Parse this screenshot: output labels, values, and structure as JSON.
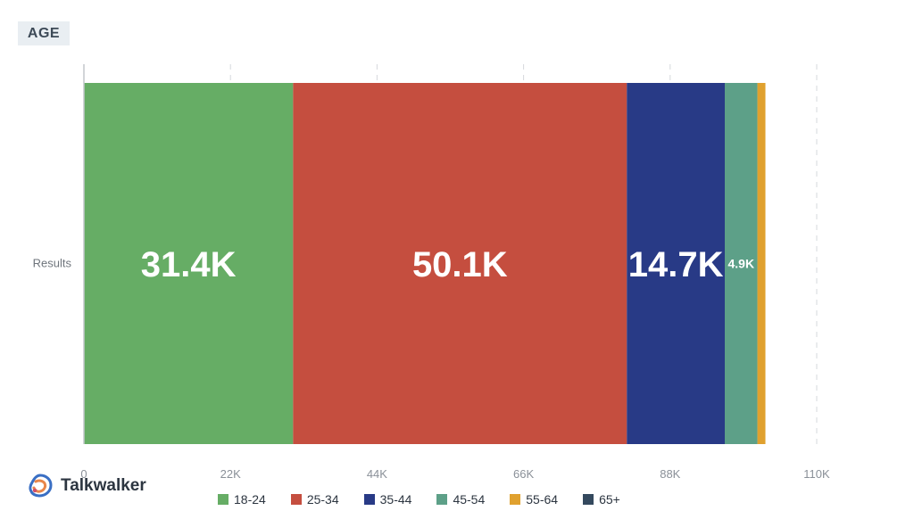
{
  "header": {
    "title": "AGE"
  },
  "brand": {
    "name": "Talkwalker",
    "logo_icon": "talkwalker-logo-icon"
  },
  "chart_data": {
    "type": "bar",
    "orientation": "horizontal",
    "stacked": true,
    "categories": [
      "Results"
    ],
    "series": [
      {
        "name": "18-24",
        "values": [
          31.4
        ],
        "label": "31.4K",
        "color": "#66ad65"
      },
      {
        "name": "25-34",
        "values": [
          50.1
        ],
        "label": "50.1K",
        "color": "#c54e3f"
      },
      {
        "name": "35-44",
        "values": [
          14.7
        ],
        "label": "14.7K",
        "color": "#283a86"
      },
      {
        "name": "45-54",
        "values": [
          4.9
        ],
        "label": "4.9K",
        "color": "#5da088"
      },
      {
        "name": "55-64",
        "values": [
          1.2
        ],
        "label": "",
        "color": "#e0a12f"
      },
      {
        "name": "65+",
        "values": [
          0
        ],
        "label": "",
        "color": "#34495e"
      }
    ],
    "value_unit": "thousands",
    "xlim": [
      0,
      110
    ],
    "x_ticks": [
      "0",
      "22K",
      "44K",
      "66K",
      "88K",
      "110K"
    ],
    "grid": true,
    "legend_position": "bottom"
  }
}
